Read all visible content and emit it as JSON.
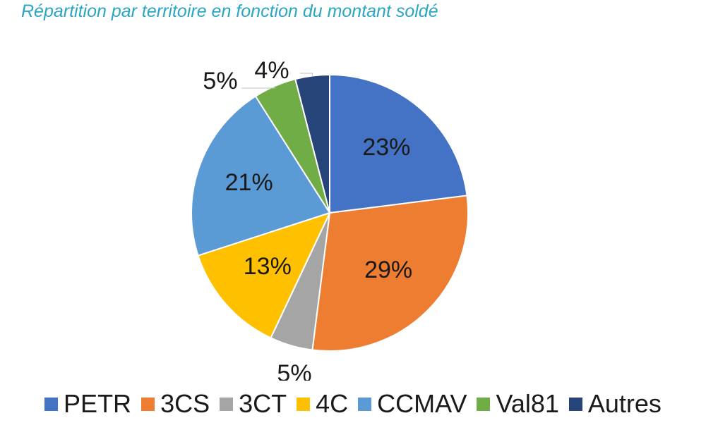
{
  "chart_data": {
    "type": "pie",
    "title": "Répartition par territoire en fonction du montant soldé",
    "categories": [
      "PETR",
      "3CS",
      "3CT",
      "4C",
      "CCMAV",
      "Val81",
      "Autres"
    ],
    "values": [
      23,
      29,
      5,
      13,
      21,
      5,
      4
    ],
    "labels": [
      "23%",
      "29%",
      "5%",
      "13%",
      "21%",
      "5%",
      "4%"
    ],
    "colors": [
      "#4472c4",
      "#ed7d31",
      "#a5a5a5",
      "#ffc000",
      "#5b9bd5",
      "#70ad47",
      "#264478"
    ],
    "legend": "bottom"
  }
}
